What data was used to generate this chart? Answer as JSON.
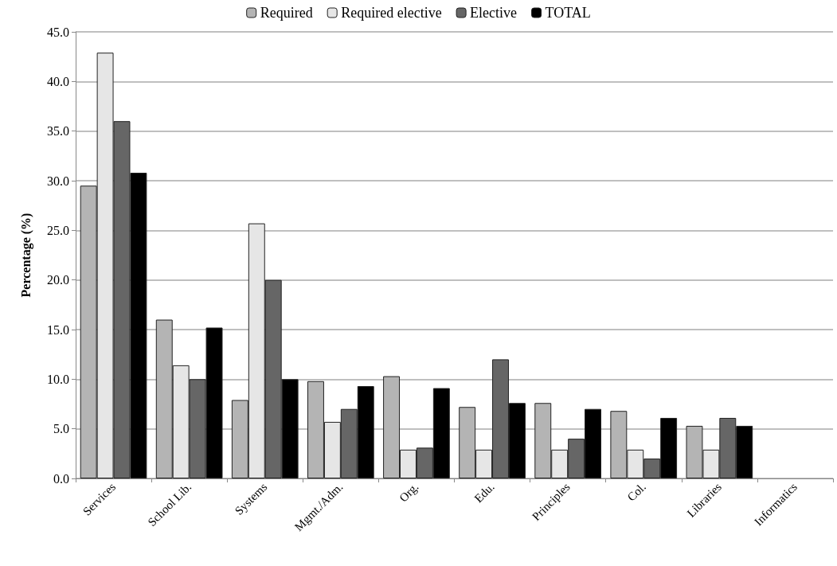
{
  "chart_data": {
    "type": "bar",
    "ylabel": "Percentage (%)",
    "categories": [
      "Services",
      "School Lib.",
      "Systems",
      "Mgmt./Adm.",
      "Org.",
      "Edu.",
      "Principles",
      "Col.",
      "Libraries",
      "Informatics"
    ],
    "series": [
      {
        "name": "Required",
        "color": "#b4b4b4",
        "values": [
          29.5,
          16.0,
          7.9,
          9.8,
          10.3,
          7.2,
          7.6,
          6.8,
          5.3,
          null
        ]
      },
      {
        "name": "Required elective",
        "color": "#e6e6e6",
        "values": [
          42.9,
          11.4,
          25.7,
          5.7,
          2.9,
          2.9,
          2.9,
          2.9,
          2.9,
          null
        ]
      },
      {
        "name": "Elective",
        "color": "#666666",
        "values": [
          36.0,
          10.0,
          20.0,
          7.0,
          3.1,
          12.0,
          4.0,
          2.0,
          6.1,
          null
        ]
      },
      {
        "name": "TOTAL",
        "color": "#000000",
        "values": [
          30.8,
          15.2,
          10.0,
          9.3,
          9.1,
          7.6,
          7.0,
          6.1,
          5.3,
          null
        ]
      }
    ],
    "ylim": [
      0,
      45
    ],
    "yticks": [
      {
        "value": 0,
        "label": "0.0"
      },
      {
        "value": 5,
        "label": "5.0"
      },
      {
        "value": 10,
        "label": "10.0"
      },
      {
        "value": 15,
        "label": "15.0"
      },
      {
        "value": 20,
        "label": "20.0"
      },
      {
        "value": 25,
        "label": "25.0"
      },
      {
        "value": 30,
        "label": "30.0"
      },
      {
        "value": 35,
        "label": "35.0"
      },
      {
        "value": 40,
        "label": "40.0"
      },
      {
        "value": 45,
        "label": "45.0"
      }
    ],
    "grid": "y",
    "legend": "top"
  }
}
